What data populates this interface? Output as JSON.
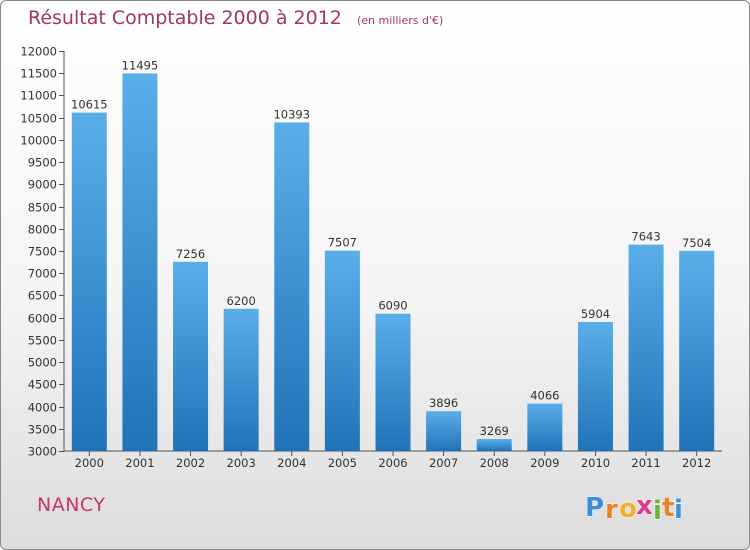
{
  "title": "Résultat Comptable 2000 à 2012",
  "unit": "(en milliers d'€)",
  "city": "NANCY",
  "brand": {
    "name": "Proxiti",
    "letters": [
      "P",
      "r",
      "o",
      "x",
      "i",
      "t",
      "i"
    ],
    "colors": [
      "#3a8fd8",
      "#e9812b",
      "#f2b12a",
      "#d93e8e",
      "#6bb33e",
      "#e9812b",
      "#3a8fd8"
    ]
  },
  "colors": {
    "title": "#a3365f",
    "bar_top": "#5aaee8",
    "bar_bottom": "#2173b8",
    "axis": "#555555"
  },
  "chart_data": {
    "type": "bar",
    "categories": [
      "2000",
      "2001",
      "2002",
      "2003",
      "2004",
      "2005",
      "2006",
      "2007",
      "2008",
      "2009",
      "2010",
      "2011",
      "2012"
    ],
    "values": [
      10615,
      11495,
      7256,
      6200,
      10393,
      7507,
      6090,
      3896,
      3269,
      4066,
      5904,
      7643,
      7504
    ],
    "data_labels": [
      "10615",
      "11495",
      "7256",
      "6200",
      "10393",
      "7507",
      "6090",
      "3896",
      "3269",
      "4066",
      "5904",
      "7643",
      "7504"
    ],
    "ylim": [
      3000,
      12000
    ],
    "yticks": [
      3000,
      3500,
      4000,
      4500,
      5000,
      5500,
      6000,
      6500,
      7000,
      7500,
      8000,
      8500,
      9000,
      9500,
      10000,
      10500,
      11000,
      11500,
      12000
    ],
    "ytick_labels": [
      "3000",
      "3500",
      "4000",
      "4500",
      "5000",
      "5500",
      "6000",
      "6500",
      "7000",
      "7500",
      "8000",
      "8500",
      "9000",
      "9500",
      "10000",
      "10500",
      "11000",
      "11500",
      "12000"
    ],
    "grid": false,
    "xlabel": "",
    "ylabel": ""
  }
}
